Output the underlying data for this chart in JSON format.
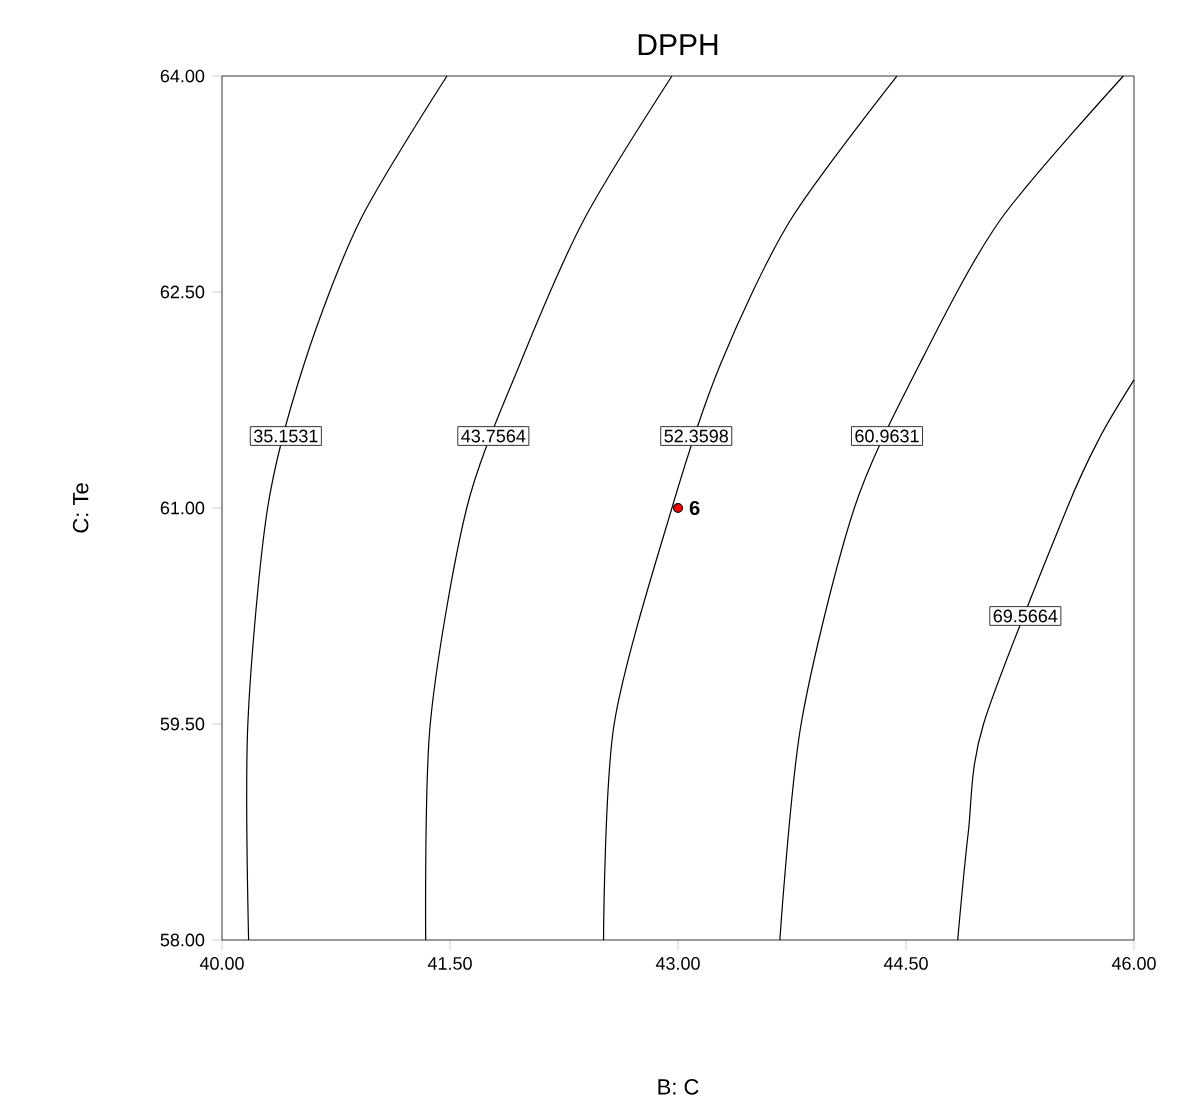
{
  "chart_data": {
    "type": "line",
    "title": "DPPH",
    "xlabel": "B: C",
    "ylabel": "C: Te",
    "marker": "none",
    "legend": false,
    "grid": false,
    "xlim": [
      40,
      46
    ],
    "ylim": [
      58,
      64
    ],
    "xticks": [
      {
        "value": 40,
        "label": "40.00"
      },
      {
        "value": 41.5,
        "label": "41.50"
      },
      {
        "value": 43,
        "label": "43.00"
      },
      {
        "value": 44.5,
        "label": "44.50"
      },
      {
        "value": 46,
        "label": "46.00"
      }
    ],
    "yticks": [
      {
        "value": 58,
        "label": "58.00"
      },
      {
        "value": 59.5,
        "label": "59.50"
      },
      {
        "value": 61,
        "label": "61.00"
      },
      {
        "value": 62.5,
        "label": "62.50"
      },
      {
        "value": 64,
        "label": "64.00"
      }
    ],
    "series": [
      {
        "name": "35.1531",
        "color": "#000000",
        "x": [
          40.175,
          40.17,
          40.3,
          40.54,
          40.91,
          41.48
        ],
        "values": [
          58,
          59.5,
          61,
          62,
          63,
          64
        ]
      },
      {
        "name": "43.7564",
        "color": "#000000",
        "x": [
          41.34,
          41.37,
          41.61,
          41.96,
          42.38,
          42.96
        ],
        "values": [
          58,
          59.5,
          61,
          62,
          63,
          64
        ]
      },
      {
        "name": "52.3598",
        "color": "#000000",
        "x": [
          42.51,
          42.58,
          42.96,
          43.28,
          43.74,
          44.44
        ],
        "values": [
          58,
          59.5,
          61,
          62,
          63,
          64
        ]
      },
      {
        "name": "60.9631",
        "color": "#000000",
        "x": [
          43.67,
          43.81,
          44.16,
          44.59,
          45.12,
          45.93
        ],
        "values": [
          58,
          59.5,
          61,
          62,
          63,
          64
        ]
      },
      {
        "name": "69.5664",
        "color": "#000000",
        "x": [
          44.84,
          44.91,
          45.01,
          45.56,
          45.78,
          46.0
        ],
        "values": [
          58,
          58.75,
          59.5,
          61,
          61.5,
          61.89
        ]
      },
      {
        "type": "scatter",
        "marker": "circle",
        "color": "#ff0000",
        "x": [
          43
        ],
        "values": [
          61
        ]
      }
    ],
    "annotations": [
      {
        "text": "6",
        "x": 43,
        "y": 61
      }
    ]
  }
}
